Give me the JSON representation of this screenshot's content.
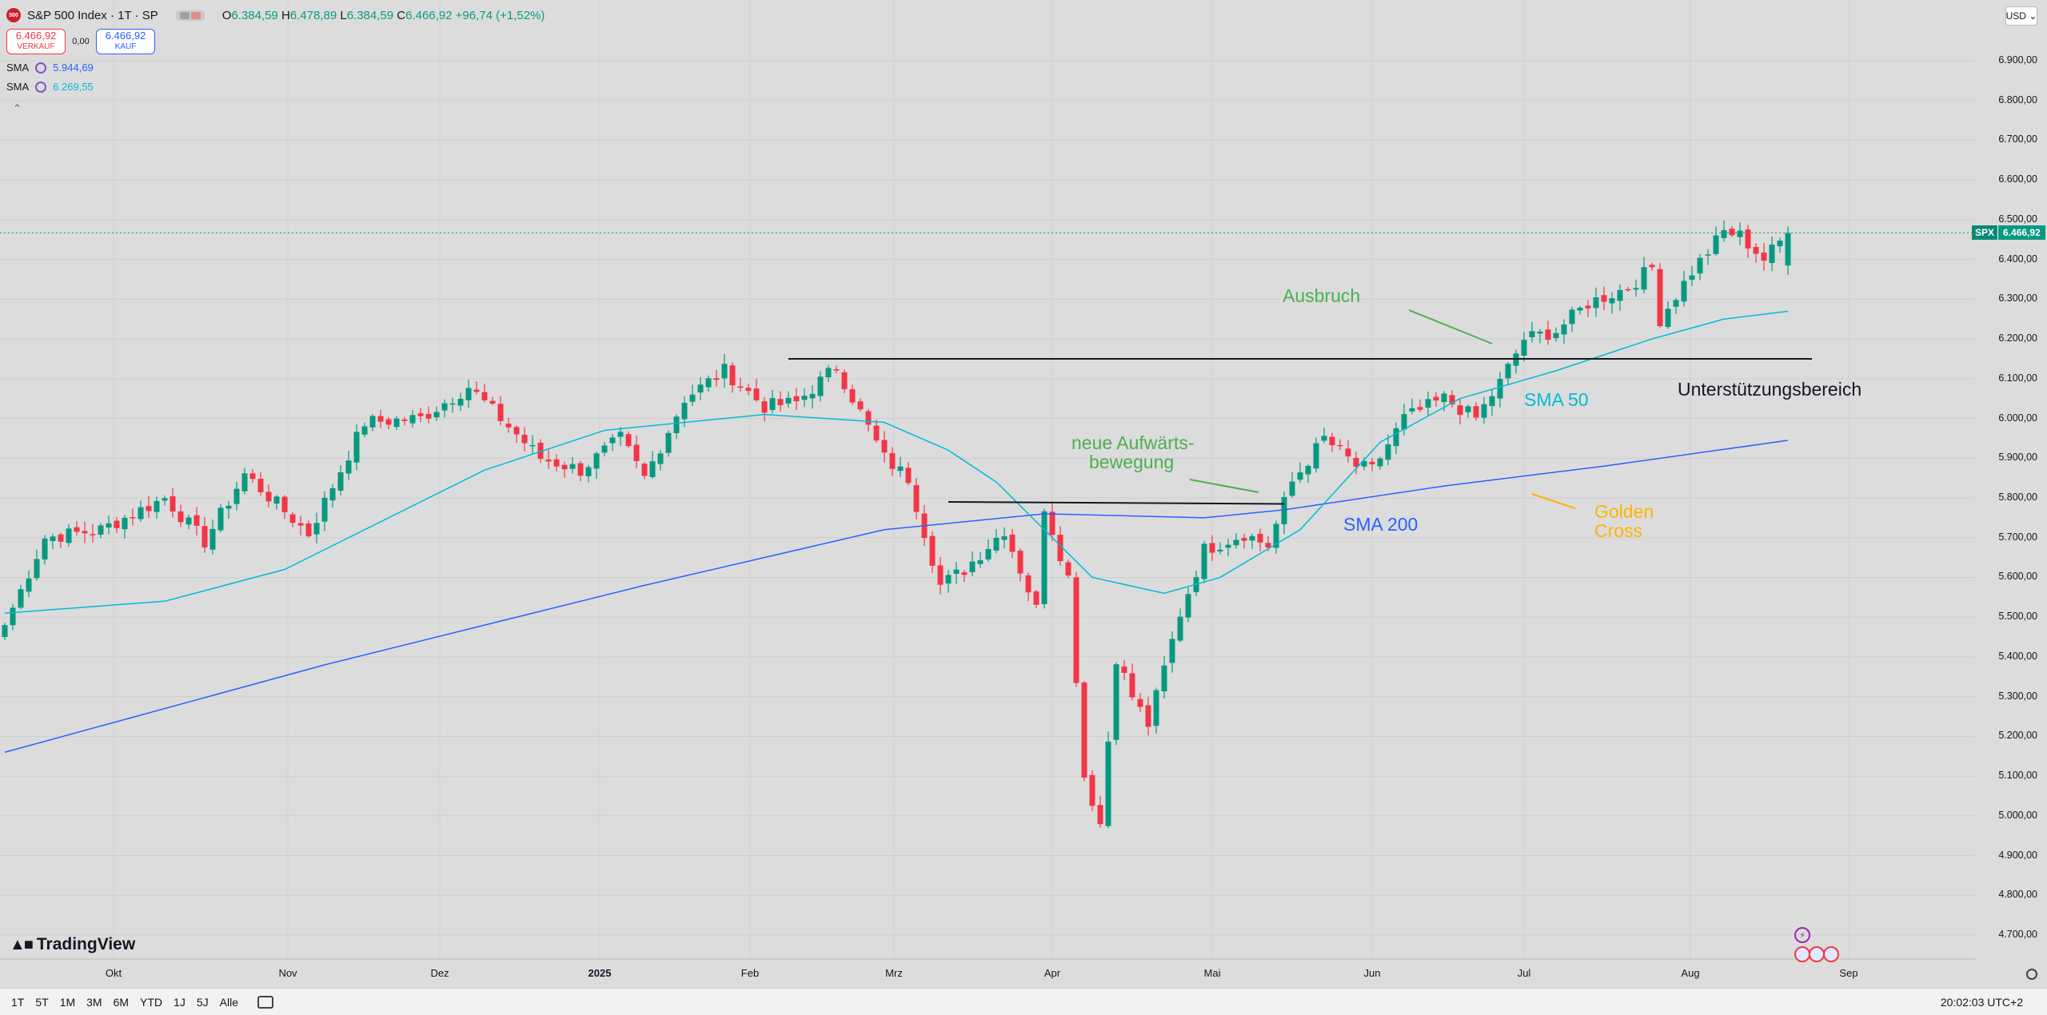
{
  "header": {
    "title": "S&P 500 Index · 1T · SP",
    "logo_text": "500",
    "ohlc": {
      "o_label": "O",
      "o": "6.384,59",
      "h_label": "H",
      "h": "6.478,89",
      "l_label": "L",
      "l": "6.384,59",
      "c_label": "C",
      "c": "6.466,92",
      "change": "+96,74 (+1,52%)"
    }
  },
  "trade": {
    "sell_price": "6.466,92",
    "sell_label": "VERKAUF",
    "spread": "0,00",
    "buy_price": "6.466,92",
    "buy_label": "KAUF"
  },
  "indicators": [
    {
      "name": "SMA",
      "value": "5.944,69",
      "color": "#2962ff"
    },
    {
      "name": "SMA",
      "value": "6.269,55",
      "color": "#00bcd4"
    }
  ],
  "currency": "USD",
  "price_label": {
    "symbol": "SPX",
    "value": "6.466,92"
  },
  "colors": {
    "up": "#089981",
    "down": "#f23645",
    "sma50": "#00bcd4",
    "sma200": "#2962ff",
    "annot_green": "#4caf50",
    "annot_orange": "#ffb300"
  },
  "annotations": {
    "ausbruch": "Ausbruch",
    "neue1": "neue Aufwärts-",
    "neue2": "bewegung",
    "sma200": "SMA 200",
    "sma50": "SMA 50",
    "golden1": "Golden",
    "golden2": "Cross",
    "support": "Unterstützungsbereich"
  },
  "timeframes": [
    "1T",
    "5T",
    "1M",
    "3M",
    "6M",
    "YTD",
    "1J",
    "5J",
    "Alle"
  ],
  "clock": "20:02:03 UTC+2",
  "tv_logo": "TradingView",
  "chart_data": {
    "type": "candlestick",
    "x_tick_labels": [
      "Okt",
      "Nov",
      "Dez",
      "2025",
      "Feb",
      "Mrz",
      "Apr",
      "Mai",
      "Jun",
      "Jul",
      "Aug",
      "Sep"
    ],
    "y_tick_labels": [
      "6.900,00",
      "6.800,00",
      "6.700,00",
      "6.600,00",
      "6.500,00",
      "6.400,00",
      "6.300,00",
      "6.200,00",
      "6.100,00",
      "6.000,00",
      "5.900,00",
      "5.800,00",
      "5.700,00",
      "5.600,00",
      "5.500,00",
      "5.400,00",
      "5.300,00",
      "5.200,00",
      "5.100,00",
      "5.000,00",
      "4.900,00",
      "4.800,00",
      "4.700,00"
    ],
    "ylim": [
      4650,
      6960
    ],
    "last_price": 6466.92,
    "close_anchors": [
      [
        0,
        5480
      ],
      [
        5,
        5700
      ],
      [
        12,
        5720
      ],
      [
        20,
        5800
      ],
      [
        25,
        5690
      ],
      [
        30,
        5860
      ],
      [
        38,
        5710
      ],
      [
        45,
        5990
      ],
      [
        52,
        6000
      ],
      [
        58,
        6080
      ],
      [
        62,
        6000
      ],
      [
        67,
        5900
      ],
      [
        72,
        5870
      ],
      [
        77,
        5950
      ],
      [
        80,
        5850
      ],
      [
        85,
        6050
      ],
      [
        90,
        6120
      ],
      [
        95,
        6030
      ],
      [
        99,
        6040
      ],
      [
        104,
        6130
      ],
      [
        110,
        5900
      ],
      [
        113,
        5850
      ],
      [
        117,
        5580
      ],
      [
        120,
        5620
      ],
      [
        125,
        5720
      ],
      [
        129,
        5520
      ],
      [
        130,
        5780
      ],
      [
        133,
        5600
      ],
      [
        135,
        5100
      ],
      [
        137,
        4980
      ],
      [
        139,
        5400
      ],
      [
        141,
        5300
      ],
      [
        143,
        5230
      ],
      [
        147,
        5510
      ],
      [
        150,
        5670
      ],
      [
        155,
        5710
      ],
      [
        158,
        5680
      ],
      [
        161,
        5840
      ],
      [
        165,
        5950
      ],
      [
        169,
        5880
      ],
      [
        171,
        5870
      ],
      [
        175,
        6000
      ],
      [
        180,
        6050
      ],
      [
        184,
        6000
      ],
      [
        187,
        6090
      ],
      [
        190,
        6200
      ],
      [
        194,
        6220
      ],
      [
        198,
        6290
      ],
      [
        203,
        6330
      ],
      [
        206,
        6380
      ],
      [
        207,
        6250
      ],
      [
        211,
        6370
      ],
      [
        215,
        6470
      ],
      [
        217,
        6460
      ],
      [
        220,
        6400
      ],
      [
        223,
        6466.92
      ]
    ],
    "sma50": [
      [
        0,
        5510
      ],
      [
        20,
        5540
      ],
      [
        35,
        5620
      ],
      [
        60,
        5870
      ],
      [
        75,
        5970
      ],
      [
        95,
        6010
      ],
      [
        110,
        5990
      ],
      [
        118,
        5920
      ],
      [
        124,
        5840
      ],
      [
        136,
        5600
      ],
      [
        145,
        5560
      ],
      [
        152,
        5600
      ],
      [
        162,
        5720
      ],
      [
        172,
        5940
      ],
      [
        182,
        6050
      ],
      [
        194,
        6120
      ],
      [
        206,
        6200
      ],
      [
        215,
        6250
      ],
      [
        223,
        6269.55
      ]
    ],
    "sma200": [
      [
        0,
        5160
      ],
      [
        40,
        5380
      ],
      [
        80,
        5580
      ],
      [
        110,
        5720
      ],
      [
        130,
        5760
      ],
      [
        150,
        5750
      ],
      [
        160,
        5770
      ],
      [
        180,
        5830
      ],
      [
        200,
        5880
      ],
      [
        223,
        5944.69
      ]
    ],
    "support_line": [
      [
        98,
        6150
      ],
      [
        226,
        6150
      ]
    ],
    "resistance_line": [
      [
        118,
        5790
      ],
      [
        160,
        5785
      ]
    ]
  }
}
